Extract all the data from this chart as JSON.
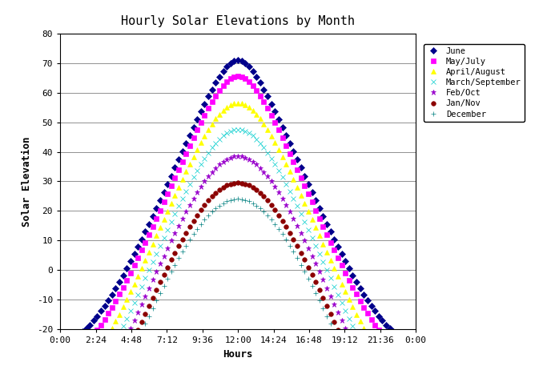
{
  "title": "Hourly Solar Elevations by Month",
  "xlabel": "Hours",
  "ylabel": "Solar Elevation",
  "ylim": [
    -20,
    80
  ],
  "xlim": [
    0,
    24
  ],
  "yticks": [
    -20,
    -10,
    0,
    10,
    20,
    30,
    40,
    50,
    60,
    70,
    80
  ],
  "xticks": [
    0,
    2.4,
    4.8,
    7.2,
    9.6,
    12.0,
    14.4,
    16.8,
    19.2,
    21.6,
    24.0
  ],
  "xtick_labels": [
    "0:00",
    "2:24",
    "4:48",
    "7:12",
    "9:36",
    "12:00",
    "14:24",
    "16:48",
    "19:12",
    "21:36",
    "0:00"
  ],
  "latitude": 42.45,
  "months": [
    {
      "name": "June",
      "declination": 23.45,
      "color": "#00008B",
      "marker": "D",
      "markersize": 4,
      "markevery": 1
    },
    {
      "name": "May/July",
      "declination": 18.0,
      "color": "#FF00FF",
      "marker": "s",
      "markersize": 4,
      "markevery": 1
    },
    {
      "name": "April/August",
      "declination": 9.0,
      "color": "#FFFF00",
      "marker": "^",
      "markersize": 4,
      "markevery": 1
    },
    {
      "name": "March/September",
      "declination": 0.0,
      "color": "#00CCCC",
      "marker": "x",
      "markersize": 4,
      "markevery": 1
    },
    {
      "name": "Feb/Oct",
      "declination": -9.0,
      "color": "#9900CC",
      "marker": "*",
      "markersize": 5,
      "markevery": 1
    },
    {
      "name": "Jan/Nov",
      "declination": -18.0,
      "color": "#8B0000",
      "marker": "o",
      "markersize": 4,
      "markevery": 1
    },
    {
      "name": "December",
      "declination": -23.45,
      "color": "#008080",
      "marker": "+",
      "markersize": 4,
      "markevery": 1
    }
  ],
  "figsize": [
    6.83,
    4.67
  ],
  "dpi": 100,
  "background_color": "#FFFFFF",
  "grid_color": "#808080",
  "marker_interval_hours": 0.25
}
